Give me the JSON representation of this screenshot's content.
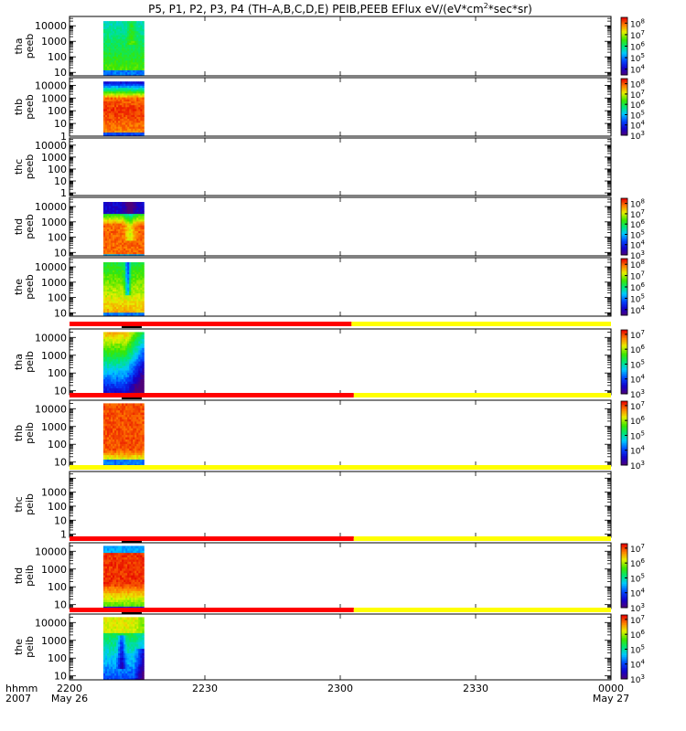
{
  "chart_data": {
    "type": "heatmap",
    "title_main": "P5, P1, P2, P3, P4 (TH–A,B,C,D,E) PEIB,PEEB EFlux eV/(eV*cm",
    "title_sup": "2",
    "title_tail": "*sec*sr)",
    "x_time_label": "hhmm",
    "x_date_label": "2007",
    "x_ticks": [
      {
        "t": 0,
        "top": "2200",
        "bottom": "May 26"
      },
      {
        "t": 30,
        "top": "2230",
        "bottom": ""
      },
      {
        "t": 60,
        "top": "2300",
        "bottom": ""
      },
      {
        "t": 90,
        "top": "2330",
        "bottom": ""
      },
      {
        "t": 120,
        "top": "0000",
        "bottom": "May 27"
      }
    ],
    "xlim_minutes": [
      0,
      120
    ],
    "data_interval_minutes": [
      7.5,
      16.5
    ],
    "y_scale": "log",
    "grid": false,
    "panels": [
      {
        "name": "tha",
        "label1": "tha",
        "label2": "peeb",
        "ylim": [
          6,
          40000
        ],
        "yticks": [
          "10",
          "100",
          "1000",
          "10000"
        ],
        "has_data": true,
        "profile": "electron_low",
        "cb_exp": [
          4,
          5,
          6,
          7,
          8
        ],
        "cb_range": [
          3.5,
          8.5
        ],
        "mode_bar": null
      },
      {
        "name": "thb",
        "label1": "thb",
        "label2": "peeb",
        "ylim": [
          1,
          40000
        ],
        "yticks": [
          "1",
          "10",
          "100",
          "1000",
          "10000"
        ],
        "has_data": true,
        "profile": "electron_red",
        "cb_exp": [
          3,
          4,
          5,
          6,
          7,
          8
        ],
        "cb_range": [
          3,
          8.5
        ],
        "mode_bar": null
      },
      {
        "name": "thc",
        "label1": "thc",
        "label2": "peeb",
        "ylim": [
          0.6,
          40000
        ],
        "yticks": [
          "1",
          "10",
          "100",
          "1000",
          "10000"
        ],
        "has_data": false,
        "profile": null,
        "cb_exp": [],
        "cb_range": null,
        "mode_bar": null
      },
      {
        "name": "thd",
        "label1": "thd",
        "label2": "peeb",
        "ylim": [
          6,
          40000
        ],
        "yticks": [
          "10",
          "100",
          "1000",
          "10000"
        ],
        "has_data": true,
        "profile": "electron_mid",
        "cb_exp": [
          3,
          4,
          5,
          6,
          7,
          8
        ],
        "cb_range": [
          3,
          8.5
        ],
        "mode_bar": null
      },
      {
        "name": "the",
        "label1": "the",
        "label2": "peeb",
        "ylim": [
          6,
          40000
        ],
        "yticks": [
          "10",
          "100",
          "1000",
          "10000"
        ],
        "has_data": true,
        "profile": "electron_mid2",
        "cb_exp": [
          4,
          5,
          6,
          7,
          8
        ],
        "cb_range": [
          3.5,
          8.5
        ],
        "mode_bar": null
      },
      {
        "name": "tha-peib",
        "label1": "tha",
        "label2": "peib",
        "ylim": [
          6,
          30000
        ],
        "yticks": [
          "10",
          "100",
          "1000",
          "10000"
        ],
        "has_data": true,
        "profile": "ion_a",
        "cb_exp": [
          3,
          4,
          5,
          6,
          7
        ],
        "cb_range": [
          3,
          7.3
        ],
        "mode_bar": {
          "split_minutes": 62.5,
          "left": "#ff0000",
          "right": "#ffff00"
        }
      },
      {
        "name": "thb-peib",
        "label1": "thb",
        "label2": "peib",
        "ylim": [
          6,
          30000
        ],
        "yticks": [
          "10",
          "100",
          "1000",
          "10000"
        ],
        "has_data": true,
        "profile": "ion_b",
        "cb_exp": [
          3,
          4,
          5,
          6,
          7
        ],
        "cb_range": [
          3,
          7.3
        ],
        "mode_bar": {
          "split_minutes": 63,
          "left": "#ff0000",
          "right": "#ffff00"
        }
      },
      {
        "name": "thc-peib",
        "label1": "thc",
        "label2": "peib",
        "ylim": [
          0.6,
          30000
        ],
        "yticks": [
          "1",
          "10",
          "100",
          "1000"
        ],
        "has_data": false,
        "profile": null,
        "cb_exp": [],
        "cb_range": null,
        "mode_bar": {
          "split_minutes": 0,
          "left": "#ff0000",
          "right": "#ffff00"
        }
      },
      {
        "name": "thd-peib",
        "label1": "thd",
        "label2": "peib",
        "ylim": [
          6,
          30000
        ],
        "yticks": [
          "10",
          "100",
          "1000",
          "10000"
        ],
        "has_data": true,
        "profile": "ion_d",
        "cb_exp": [
          3,
          4,
          5,
          6,
          7
        ],
        "cb_range": [
          3,
          7.3
        ],
        "mode_bar": {
          "split_minutes": 63,
          "left": "#ff0000",
          "right": "#ffff00"
        }
      },
      {
        "name": "the-peib",
        "label1": "the",
        "label2": "peib",
        "ylim": [
          6,
          30000
        ],
        "yticks": [
          "10",
          "100",
          "1000",
          "10000"
        ],
        "has_data": true,
        "profile": "ion_e",
        "cb_exp": [
          3,
          4,
          5,
          6,
          7
        ],
        "cb_range": [
          3,
          7.3
        ],
        "mode_bar": {
          "split_minutes": 63,
          "left": "#ff0000",
          "right": "#ffff00"
        }
      }
    ]
  }
}
